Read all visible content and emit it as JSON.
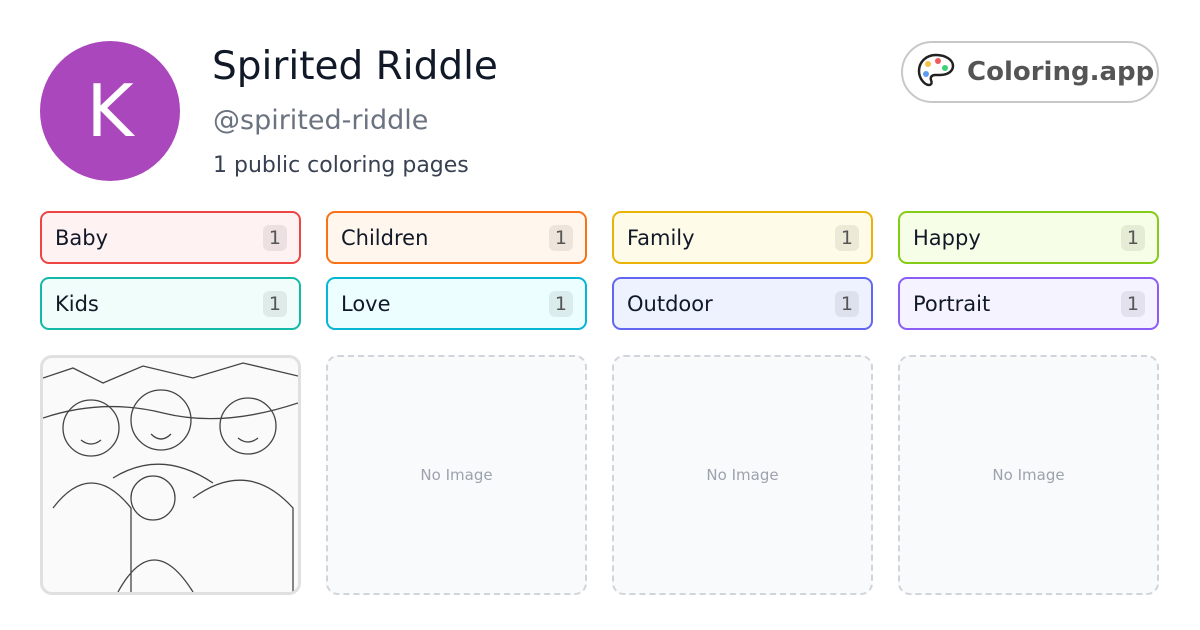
{
  "profile": {
    "initial": "K",
    "name": "Spirited Riddle",
    "handle": "@spirited-riddle",
    "count_text": "1 public coloring pages",
    "avatar_color": "#ab47bc"
  },
  "brand": {
    "label": "Coloring.app",
    "icon": "palette-icon"
  },
  "tags": [
    {
      "label": "Baby",
      "count": "1",
      "color": "#ef4444",
      "bg": "#fef2f2"
    },
    {
      "label": "Children",
      "count": "1",
      "color": "#f97316",
      "bg": "#fff7ed"
    },
    {
      "label": "Family",
      "count": "1",
      "color": "#eab308",
      "bg": "#fefce8"
    },
    {
      "label": "Happy",
      "count": "1",
      "color": "#84cc16",
      "bg": "#f7fee7"
    },
    {
      "label": "Kids",
      "count": "1",
      "color": "#14b8a6",
      "bg": "#f0fdfa"
    },
    {
      "label": "Love",
      "count": "1",
      "color": "#06b6d4",
      "bg": "#ecfeff"
    },
    {
      "label": "Outdoor",
      "count": "1",
      "color": "#6366f1",
      "bg": "#eef2ff"
    },
    {
      "label": "Portrait",
      "count": "1",
      "color": "#8b5cf6",
      "bg": "#f5f3ff"
    }
  ],
  "cards": [
    {
      "type": "image"
    },
    {
      "type": "empty",
      "label": "No Image"
    },
    {
      "type": "empty",
      "label": "No Image"
    },
    {
      "type": "empty",
      "label": "No Image"
    }
  ]
}
